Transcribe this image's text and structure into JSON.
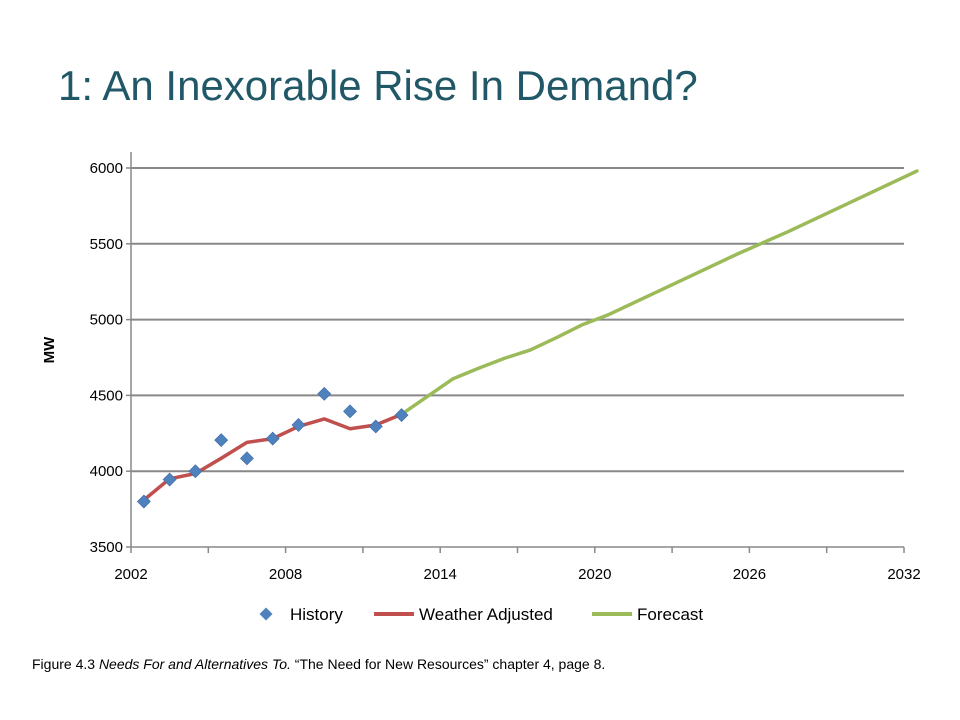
{
  "page": {
    "title": "1: An Inexorable Rise In Demand?",
    "caption": {
      "prefix": "Figure 4.3 ",
      "italic": "Needs For and Alternatives To.",
      "suffix": " “The Need for New Resources” chapter 4, page 8."
    }
  },
  "chart_data": {
    "type": "line",
    "title": "",
    "xlabel": "",
    "ylabel": "MW",
    "xlim": [
      2002,
      2032
    ],
    "ylim": [
      3500,
      6000
    ],
    "x_ticks": [
      2002,
      2008,
      2014,
      2020,
      2026,
      2032
    ],
    "y_ticks": [
      3500,
      4000,
      4500,
      5000,
      5500,
      6000
    ],
    "grid": "horizontal",
    "legend_position": "bottom",
    "series": [
      {
        "name": "History",
        "style": "markers",
        "marker": "diamond",
        "color": "#4F81BD",
        "x": [
          2002.5,
          2003.5,
          2004.5,
          2005.5,
          2006.5,
          2007.5,
          2008.5,
          2009.5,
          2010.5,
          2011.5,
          2012.5
        ],
        "y": [
          3800,
          3945,
          4000,
          4205,
          4085,
          4215,
          4305,
          4510,
          4395,
          4295,
          4370
        ]
      },
      {
        "name": "Weather Adjusted",
        "style": "line",
        "color": "#C0504D",
        "x": [
          2002.5,
          2003.5,
          2004.5,
          2005.5,
          2006.5,
          2007.5,
          2008.5,
          2009.5,
          2010.5,
          2011.5,
          2012.5
        ],
        "y": [
          3810,
          3950,
          3985,
          4085,
          4190,
          4215,
          4295,
          4345,
          4280,
          4305,
          4375
        ]
      },
      {
        "name": "Forecast",
        "style": "line",
        "color": "#9BBB59",
        "x": [
          2012.5,
          2014.5,
          2015.5,
          2016.5,
          2017.5,
          2018.5,
          2019.5,
          2020.5,
          2021.5,
          2022.5,
          2023.5,
          2024.5,
          2025.5,
          2026.5,
          2027.5,
          2028.5,
          2029.5,
          2030.5,
          2031.5,
          2032.5
        ],
        "y": [
          4375,
          4610,
          4680,
          4745,
          4800,
          4880,
          4965,
          5030,
          5110,
          5190,
          5270,
          5350,
          5430,
          5505,
          5580,
          5660,
          5740,
          5820,
          5900,
          5980
        ]
      }
    ]
  }
}
